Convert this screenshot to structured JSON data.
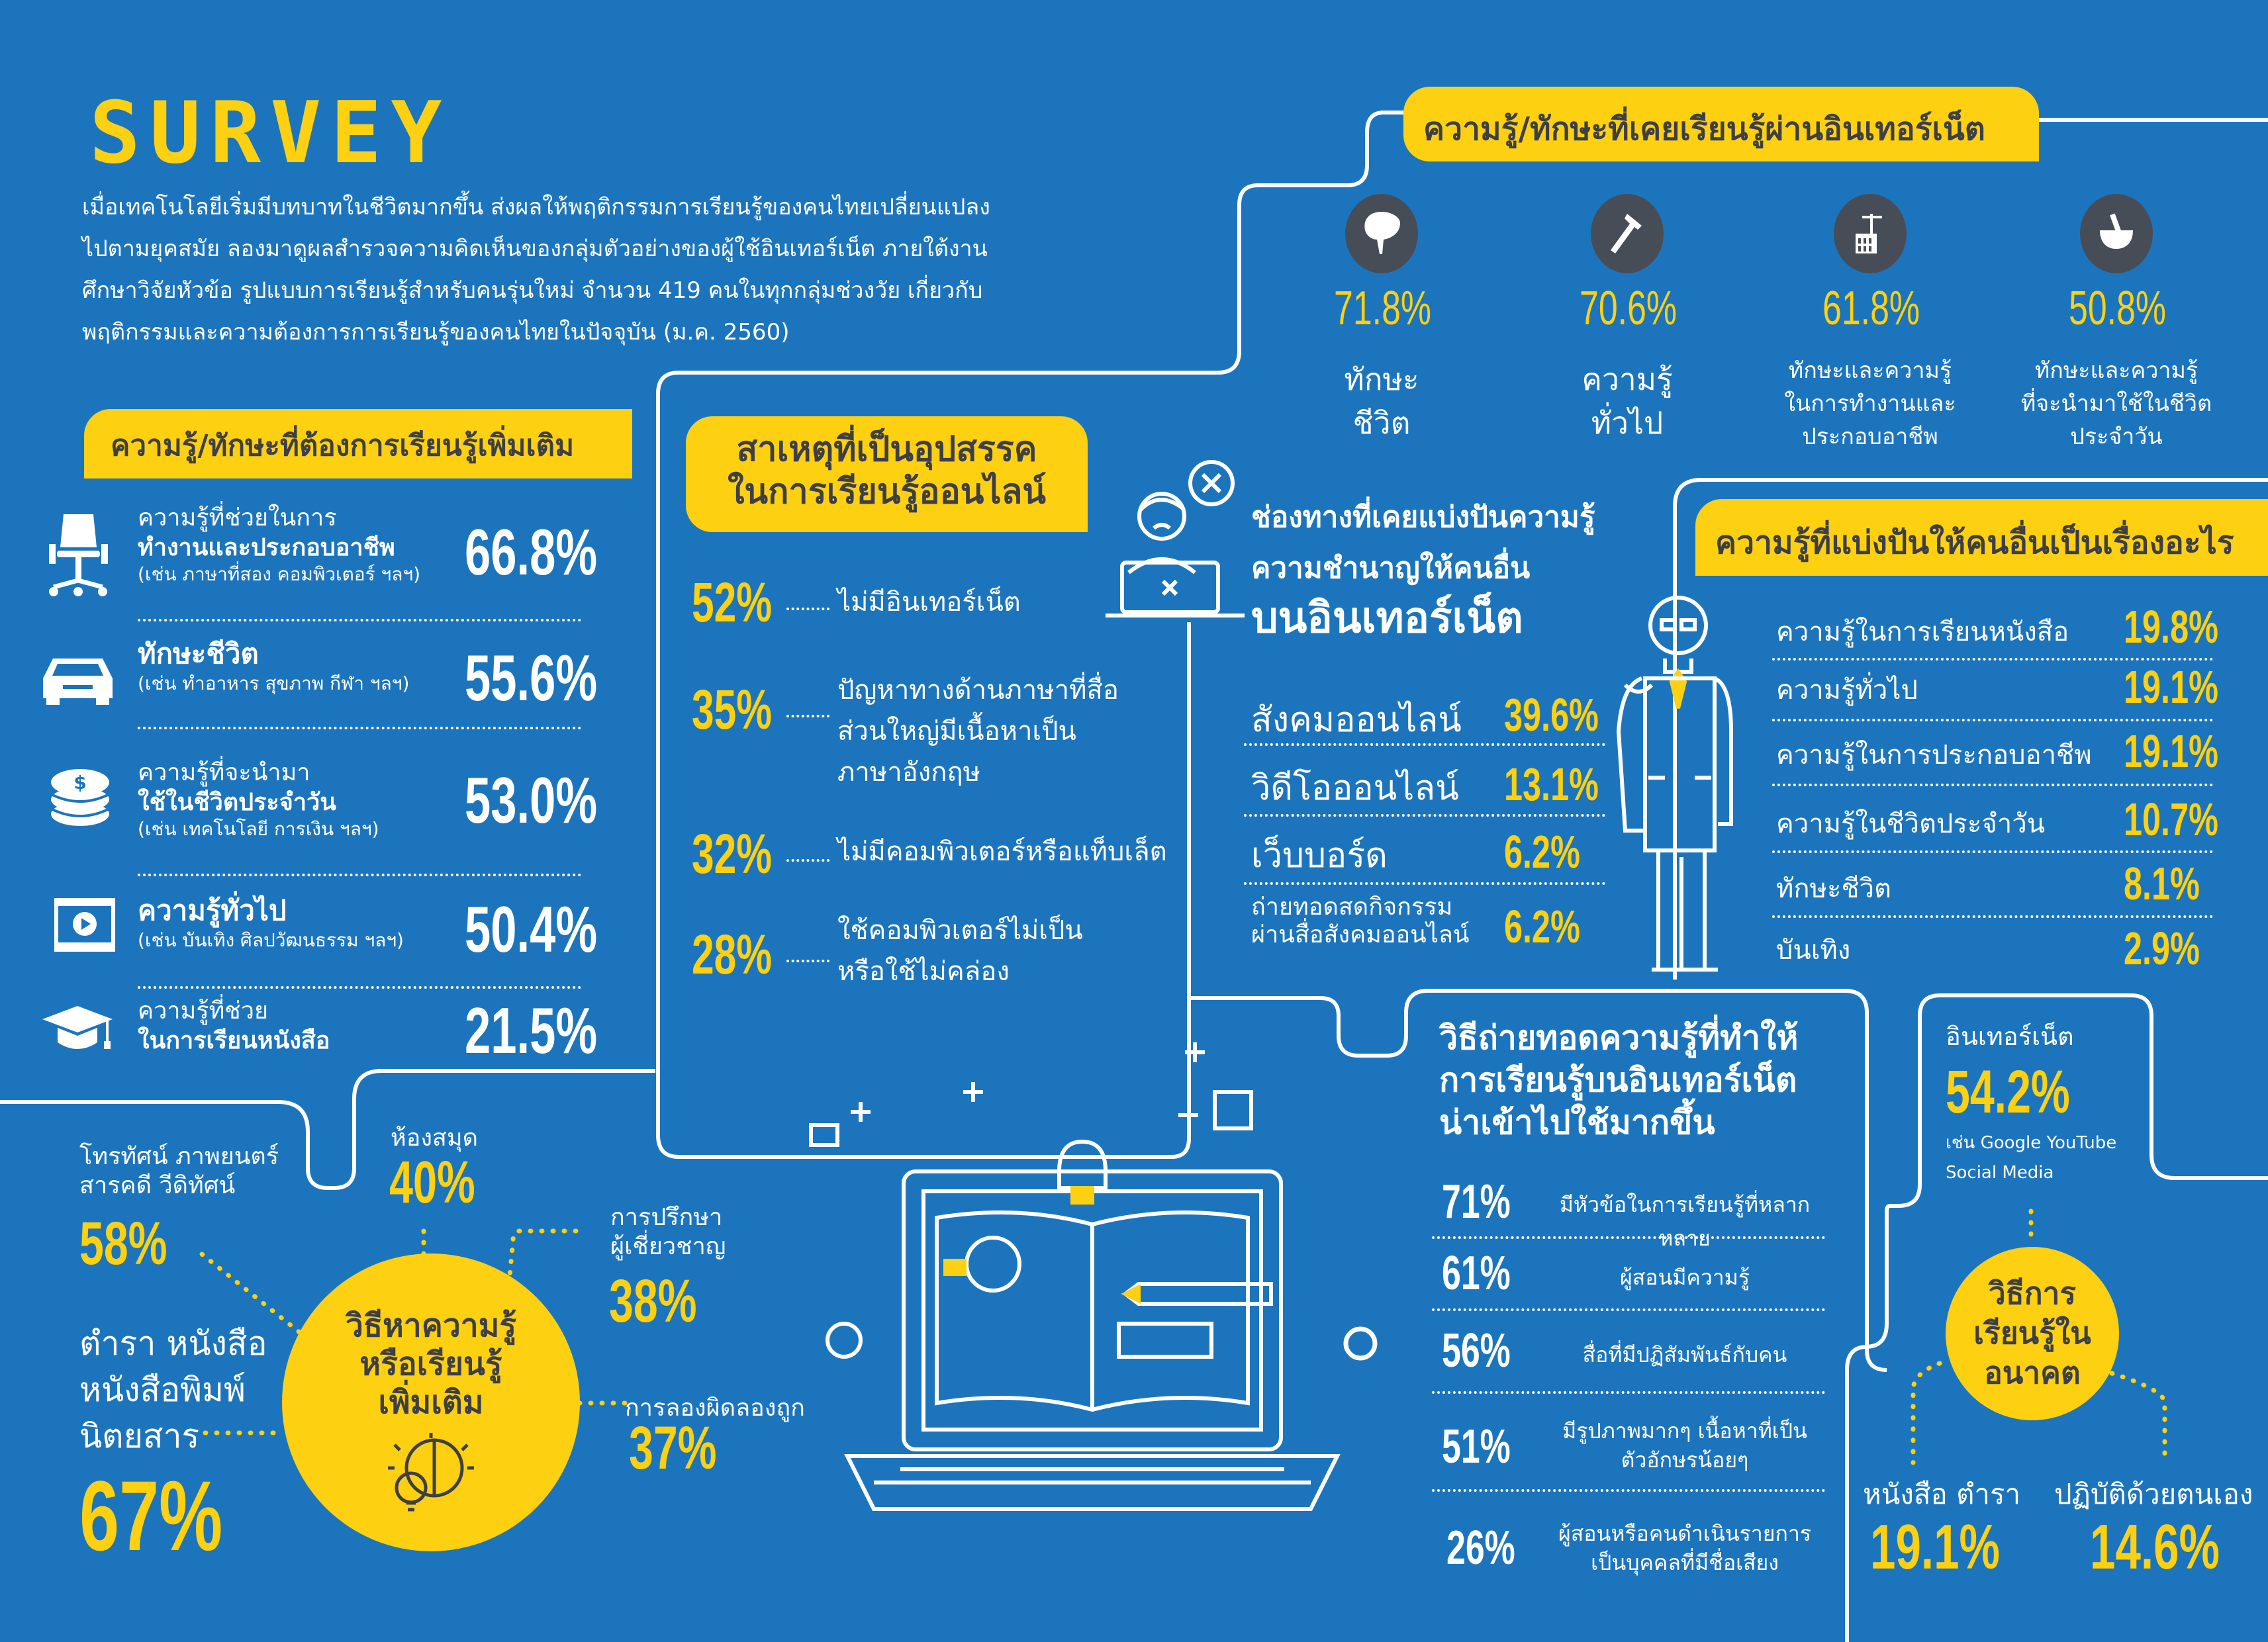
{
  "colors": {
    "background": "#1c75bc",
    "accent": "#fdd012",
    "dark": "#3d3f45"
  },
  "title": "SURVEY",
  "intro": [
    "เมื่อเทคโนโลยีเริ่มมีบทบาทในชีวิตมากขึ้น ส่งผลให้พฤติกรรมการเรียนรู้ของคนไทยเปลี่ยนแปลง",
    "ไปตามยุคสมัย ลองมาดูผลสำรวจความคิดเห็นของกลุ่มตัวอย่างของผู้ใช้อินเทอร์เน็ต ภายใต้งาน",
    "ศึกษาวิจัยหัวข้อ รูปแบบการเรียนรู้สำหรับคนรุ่นใหม่ จำนวน 419 คนในทุกกลุ่มช่วงวัย เกี่ยวกับ",
    "พฤติกรรมและความต้องการการเรียนรู้ของคนไทยในปัจจุบัน (ม.ค. 2560)"
  ],
  "want_more": {
    "header": "ความรู้/ทักษะที่ต้องการเรียนรู้เพิ่มเติม",
    "items": [
      {
        "line1": "ความรู้ที่ช่วยในการ",
        "line2": "ทำงานและประกอบอาชีพ",
        "note": "(เช่น ภาษาที่สอง คอมพิวเตอร์ ฯลฯ)",
        "value": "66.8%",
        "icon": "office-chair-icon"
      },
      {
        "line1": "",
        "line2": "ทักษะชีวิต",
        "note": "(เช่น ทำอาหาร สุขภาพ กีฬา ฯลฯ)",
        "value": "55.6%",
        "icon": "car-icon"
      },
      {
        "line1": "ความรู้ที่จะนำมา",
        "line2": "ใช้ในชีวิตประจำวัน",
        "note": "(เช่น เทคโนโลยี การเงิน ฯลฯ)",
        "value": "53.0%",
        "icon": "coins-icon"
      },
      {
        "line1": "",
        "line2": "ความรู้ทั่วไป",
        "note": "(เช่น บันเทิง ศิลปวัฒนธรรม ฯลฯ)",
        "value": "50.4%",
        "icon": "video-player-icon"
      },
      {
        "line1": "ความรู้ที่ช่วย",
        "line2": "ในการเรียนหนังสือ",
        "note": "",
        "value": "21.5%",
        "icon": "graduation-cap-icon"
      }
    ]
  },
  "obstacles": {
    "header_line1": "สาเหตุที่เป็นอุปสรรค",
    "header_line2": "ในการเรียนรู้ออนไลน์",
    "items": [
      {
        "value": "52%",
        "text": [
          "ไม่มีอินเทอร์เน็ต"
        ]
      },
      {
        "value": "35%",
        "text": [
          "ปัญหาทางด้านภาษาที่สื่อ",
          "ส่วนใหญ่มีเนื้อหาเป็น",
          "ภาษาอังกฤษ"
        ]
      },
      {
        "value": "32%",
        "text": [
          "ไม่มีคอมพิวเตอร์หรือแท็บเล็ต"
        ]
      },
      {
        "value": "28%",
        "text": [
          "ใช้คอมพิวเตอร์ไม่เป็น",
          "หรือใช้ไม่คล่อง"
        ]
      }
    ]
  },
  "learned_online": {
    "header": "ความรู้/ทักษะที่เคยเรียนรู้ผ่านอินเทอร์เน็ต",
    "items": [
      {
        "value": "71.8%",
        "label": [
          "ทักษะ",
          "ชีวิต"
        ],
        "icon": "brain-icon"
      },
      {
        "value": "70.6%",
        "label": [
          "ความรู้",
          "ทั่วไป"
        ],
        "icon": "hammer-icon"
      },
      {
        "value": "61.8%",
        "label": [
          "ทักษะและความรู้",
          "ในการทำงานและ",
          "ประกอบอาชีพ"
        ],
        "icon": "building-crane-icon"
      },
      {
        "value": "50.8%",
        "label": [
          "ทักษะและความรู้",
          "ที่จะนำมาใช้ในชีวิต",
          "ประจำวัน"
        ],
        "icon": "mortar-pestle-icon"
      }
    ]
  },
  "share_channels": {
    "title_line1": "ช่องทางที่เคยแบ่งปันความรู้",
    "title_line2": "ความชำนาญให้คนอื่น",
    "title_line3": "บนอินเทอร์เน็ต",
    "items": [
      {
        "label": [
          "สังคมออนไลน์"
        ],
        "value": "39.6%"
      },
      {
        "label": [
          "วิดีโอออนไลน์"
        ],
        "value": "13.1%"
      },
      {
        "label": [
          "เว็บบอร์ด"
        ],
        "value": "6.2%"
      },
      {
        "label": [
          "ถ่ายทอดสดกิจกรรม",
          "ผ่านสื่อสังคมออนไลน์"
        ],
        "value": "6.2%"
      }
    ]
  },
  "share_topics": {
    "header": "ความรู้ที่แบ่งปันให้คนอื่นเป็นเรื่องอะไร",
    "items": [
      {
        "label": "ความรู้ในการเรียนหนังสือ",
        "value": "19.8%"
      },
      {
        "label": "ความรู้ทั่วไป",
        "value": "19.1%"
      },
      {
        "label": "ความรู้ในการประกอบอาชีพ",
        "value": "19.1%"
      },
      {
        "label": "ความรู้ในชีวิตประจำวัน",
        "value": "10.7%"
      },
      {
        "label": "ทักษะชีวิต",
        "value": "8.1%"
      },
      {
        "label": "บันเทิง",
        "value": "2.9%"
      }
    ]
  },
  "find_knowledge": {
    "center": [
      "วิธีหาความรู้",
      "หรือเรียนรู้",
      "เพิ่มเติม"
    ],
    "items": [
      {
        "label": [
          "โทรทัศน์ ภาพยนตร์",
          "สารคดี วีดิทัศน์"
        ],
        "value": "58%"
      },
      {
        "label": [
          "ตำรา หนังสือ",
          "หนังสือพิมพ์",
          "นิตยสาร"
        ],
        "value": "67%"
      },
      {
        "label": [
          "ห้องสมุด"
        ],
        "value": "40%"
      },
      {
        "label": [
          "การปรึกษา",
          "ผู้เชี่ยวชาญ"
        ],
        "value": "38%"
      },
      {
        "label": [
          "การลองผิดลองถูก"
        ],
        "value": "37%"
      }
    ]
  },
  "attractive": {
    "title": [
      "วิธีถ่ายทอดความรู้ที่ทำให้",
      "การเรียนรู้บนอินเทอร์เน็ต",
      "น่าเข้าไปใช้มากขึ้น"
    ],
    "items": [
      {
        "value": "71%",
        "text": [
          "มีหัวข้อในการเรียนรู้ที่หลากหลาย"
        ]
      },
      {
        "value": "61%",
        "text": [
          "ผู้สอนมีความรู้"
        ]
      },
      {
        "value": "56%",
        "text": [
          "สื่อที่มีปฏิสัมพันธ์กับคน"
        ]
      },
      {
        "value": "51%",
        "text": [
          "มีรูปภาพมากๆ เนื้อหาที่เป็น",
          "ตัวอักษรน้อยๆ"
        ]
      },
      {
        "value": "26%",
        "text": [
          "ผู้สอนหรือคนดำเนินรายการ",
          "เป็นบุคคลที่มีชื่อเสียง"
        ]
      }
    ]
  },
  "future": {
    "center": [
      "วิธีการ",
      "เรียนรู้ใน",
      "อนาคต"
    ],
    "internet": {
      "label": "อินเทอร์เน็ต",
      "value": "54.2%",
      "note1": "เช่น Google YouTube",
      "note2": "Social Media"
    },
    "books": {
      "label": "หนังสือ ตำรา",
      "value": "19.1%"
    },
    "self": {
      "label": "ปฏิบัติด้วยตนเอง",
      "value": "14.6%"
    }
  }
}
